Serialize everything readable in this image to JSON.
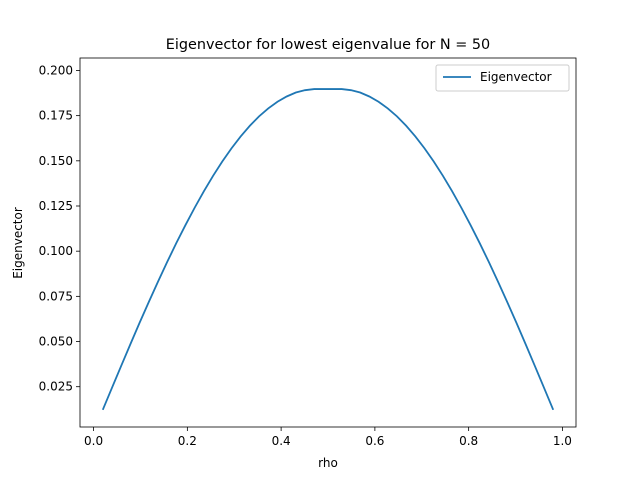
{
  "chart_data": {
    "type": "line",
    "title": "Eigenvector for lowest eigenvalue for N = 50",
    "xlabel": "rho",
    "ylabel": "Eigenvector",
    "xlim": [
      -0.029,
      1.029
    ],
    "ylim": [
      0.0027,
      0.2069
    ],
    "x_ticks": [
      0.0,
      0.2,
      0.4,
      0.6,
      0.8,
      1.0
    ],
    "x_tick_labels": [
      "0.0",
      "0.2",
      "0.4",
      "0.6",
      "0.8",
      "1.0"
    ],
    "y_ticks": [
      0.025,
      0.05,
      0.075,
      0.1,
      0.125,
      0.15,
      0.175,
      0.2
    ],
    "y_tick_labels": [
      "0.025",
      "0.050",
      "0.075",
      "0.100",
      "0.125",
      "0.150",
      "0.175",
      "0.200"
    ],
    "grid": false,
    "legend_position": "top-right",
    "colors": {
      "series": "#1f77b4"
    },
    "series": [
      {
        "name": "Eigenvector",
        "x": [
          0.0196,
          0.0392,
          0.0588,
          0.0784,
          0.098,
          0.1176,
          0.1373,
          0.1569,
          0.1765,
          0.1961,
          0.2157,
          0.2353,
          0.2549,
          0.2745,
          0.2941,
          0.3137,
          0.3333,
          0.3529,
          0.3725,
          0.3922,
          0.4118,
          0.4314,
          0.451,
          0.4706,
          0.4902,
          0.5098,
          0.5294,
          0.549,
          0.5686,
          0.5882,
          0.6078,
          0.6275,
          0.6471,
          0.6667,
          0.6863,
          0.7059,
          0.7255,
          0.7451,
          0.7647,
          0.7843,
          0.8039,
          0.8235,
          0.8431,
          0.8627,
          0.8824,
          0.902,
          0.9216,
          0.9412,
          0.9608,
          0.9804
        ],
        "values": [
          0.0122,
          0.0244,
          0.0365,
          0.0485,
          0.0603,
          0.0718,
          0.0831,
          0.094,
          0.1045,
          0.1145,
          0.1241,
          0.1332,
          0.1417,
          0.1496,
          0.1569,
          0.1635,
          0.1694,
          0.1746,
          0.179,
          0.1827,
          0.1856,
          0.1878,
          0.1891,
          0.1897,
          0.1897,
          0.1897,
          0.1897,
          0.1891,
          0.1878,
          0.1856,
          0.1827,
          0.179,
          0.1746,
          0.1694,
          0.1635,
          0.1569,
          0.1496,
          0.1417,
          0.1332,
          0.1241,
          0.1145,
          0.1045,
          0.094,
          0.0831,
          0.0718,
          0.0603,
          0.0485,
          0.0365,
          0.0244,
          0.0122
        ]
      }
    ]
  }
}
